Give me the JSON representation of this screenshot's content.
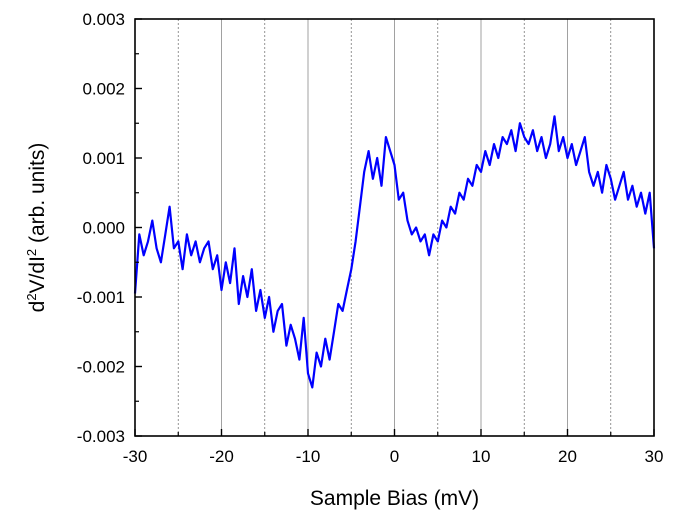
{
  "chart_data": {
    "type": "line",
    "title": "",
    "xlabel": "Sample Bias (mV)",
    "ylabel_main": "d",
    "ylabel_sup1": "2",
    "ylabel_mid": "V/dI",
    "ylabel_sup2": "2",
    "ylabel_rest": " (arb. units)",
    "xlim": [
      -30,
      30
    ],
    "ylim": [
      -0.003,
      0.003
    ],
    "x_ticks": [
      -30,
      -20,
      -10,
      0,
      10,
      20,
      30
    ],
    "x_tick_labels": [
      "-30",
      "-20",
      "-10",
      "0",
      "10",
      "20",
      "30"
    ],
    "y_ticks": [
      -0.003,
      -0.002,
      -0.001,
      0.0,
      0.001,
      0.002,
      0.003
    ],
    "y_tick_labels": [
      "-0.003",
      "-0.002",
      "-0.001",
      "0.000",
      "0.001",
      "0.002",
      "0.003"
    ],
    "grid_major_x": [
      -20,
      -10,
      0,
      10,
      20
    ],
    "grid_minor_x": [
      -25,
      -15,
      -5,
      5,
      15,
      25
    ],
    "series_color": "#0000ff",
    "series": [
      {
        "x": [
          -30,
          -29.5,
          -29,
          -28.5,
          -28,
          -27.5,
          -27,
          -26.5,
          -26,
          -25.5,
          -25,
          -24.5,
          -24,
          -23.5,
          -23,
          -22.5,
          -22,
          -21.5,
          -21,
          -20.5,
          -20,
          -19.5,
          -19,
          -18.5,
          -18,
          -17.5,
          -17,
          -16.5,
          -16,
          -15.5,
          -15,
          -14.5,
          -14,
          -13.5,
          -13,
          -12.5,
          -12,
          -11.5,
          -11,
          -10.5,
          -10,
          -9.5,
          -9,
          -8.5,
          -8,
          -7.5,
          -7,
          -6.5,
          -6,
          -5.5,
          -5,
          -4.5,
          -4,
          -3.5,
          -3,
          -2.5,
          -2,
          -1.5,
          -1,
          -0.5,
          0,
          0.5,
          1,
          1.5,
          2,
          2.5,
          3,
          3.5,
          4,
          4.5,
          5,
          5.5,
          6,
          6.5,
          7,
          7.5,
          8,
          8.5,
          9,
          9.5,
          10,
          10.5,
          11,
          11.5,
          12,
          12.5,
          13,
          13.5,
          14,
          14.5,
          15,
          15.5,
          16,
          16.5,
          17,
          17.5,
          18,
          18.5,
          19,
          19.5,
          20,
          20.5,
          21,
          21.5,
          22,
          22.5,
          23,
          23.5,
          24,
          24.5,
          25,
          25.5,
          26,
          26.5,
          27,
          27.5,
          28,
          28.5,
          29,
          29.5,
          30
        ],
        "y": [
          -0.00095,
          -0.0001,
          -0.0004,
          -0.0002,
          0.0001,
          -0.0003,
          -0.0005,
          -0.0001,
          0.0003,
          -0.0003,
          -0.0002,
          -0.0006,
          -0.0001,
          -0.0004,
          -0.0002,
          -0.0005,
          -0.0003,
          -0.0002,
          -0.0006,
          -0.0004,
          -0.0009,
          -0.0005,
          -0.0008,
          -0.0003,
          -0.0011,
          -0.0007,
          -0.001,
          -0.0006,
          -0.0012,
          -0.0009,
          -0.0013,
          -0.001,
          -0.0015,
          -0.0012,
          -0.0011,
          -0.0017,
          -0.0014,
          -0.0016,
          -0.0019,
          -0.0013,
          -0.0021,
          -0.0023,
          -0.0018,
          -0.002,
          -0.0016,
          -0.0019,
          -0.0015,
          -0.0011,
          -0.0012,
          -0.0009,
          -0.0006,
          -0.0002,
          0.0003,
          0.0008,
          0.0011,
          0.0007,
          0.001,
          0.0006,
          0.0013,
          0.0011,
          0.0009,
          0.0004,
          0.0005,
          0.0001,
          -0.0001,
          0.0,
          -0.0002,
          -0.0001,
          -0.0004,
          -0.0001,
          -0.0002,
          0.0001,
          0.0,
          0.0003,
          0.0002,
          0.0005,
          0.0004,
          0.0007,
          0.0006,
          0.0009,
          0.0008,
          0.0011,
          0.0009,
          0.0012,
          0.001,
          0.0013,
          0.0012,
          0.0014,
          0.0011,
          0.0015,
          0.0013,
          0.0012,
          0.0014,
          0.0011,
          0.0013,
          0.001,
          0.0012,
          0.0016,
          0.0011,
          0.0013,
          0.001,
          0.0012,
          0.0009,
          0.0011,
          0.0013,
          0.0008,
          0.0006,
          0.0008,
          0.0005,
          0.0009,
          0.0007,
          0.0004,
          0.0006,
          0.0008,
          0.0004,
          0.0006,
          0.0003,
          0.0005,
          0.0002,
          0.0005,
          -0.0003
        ]
      }
    ]
  }
}
